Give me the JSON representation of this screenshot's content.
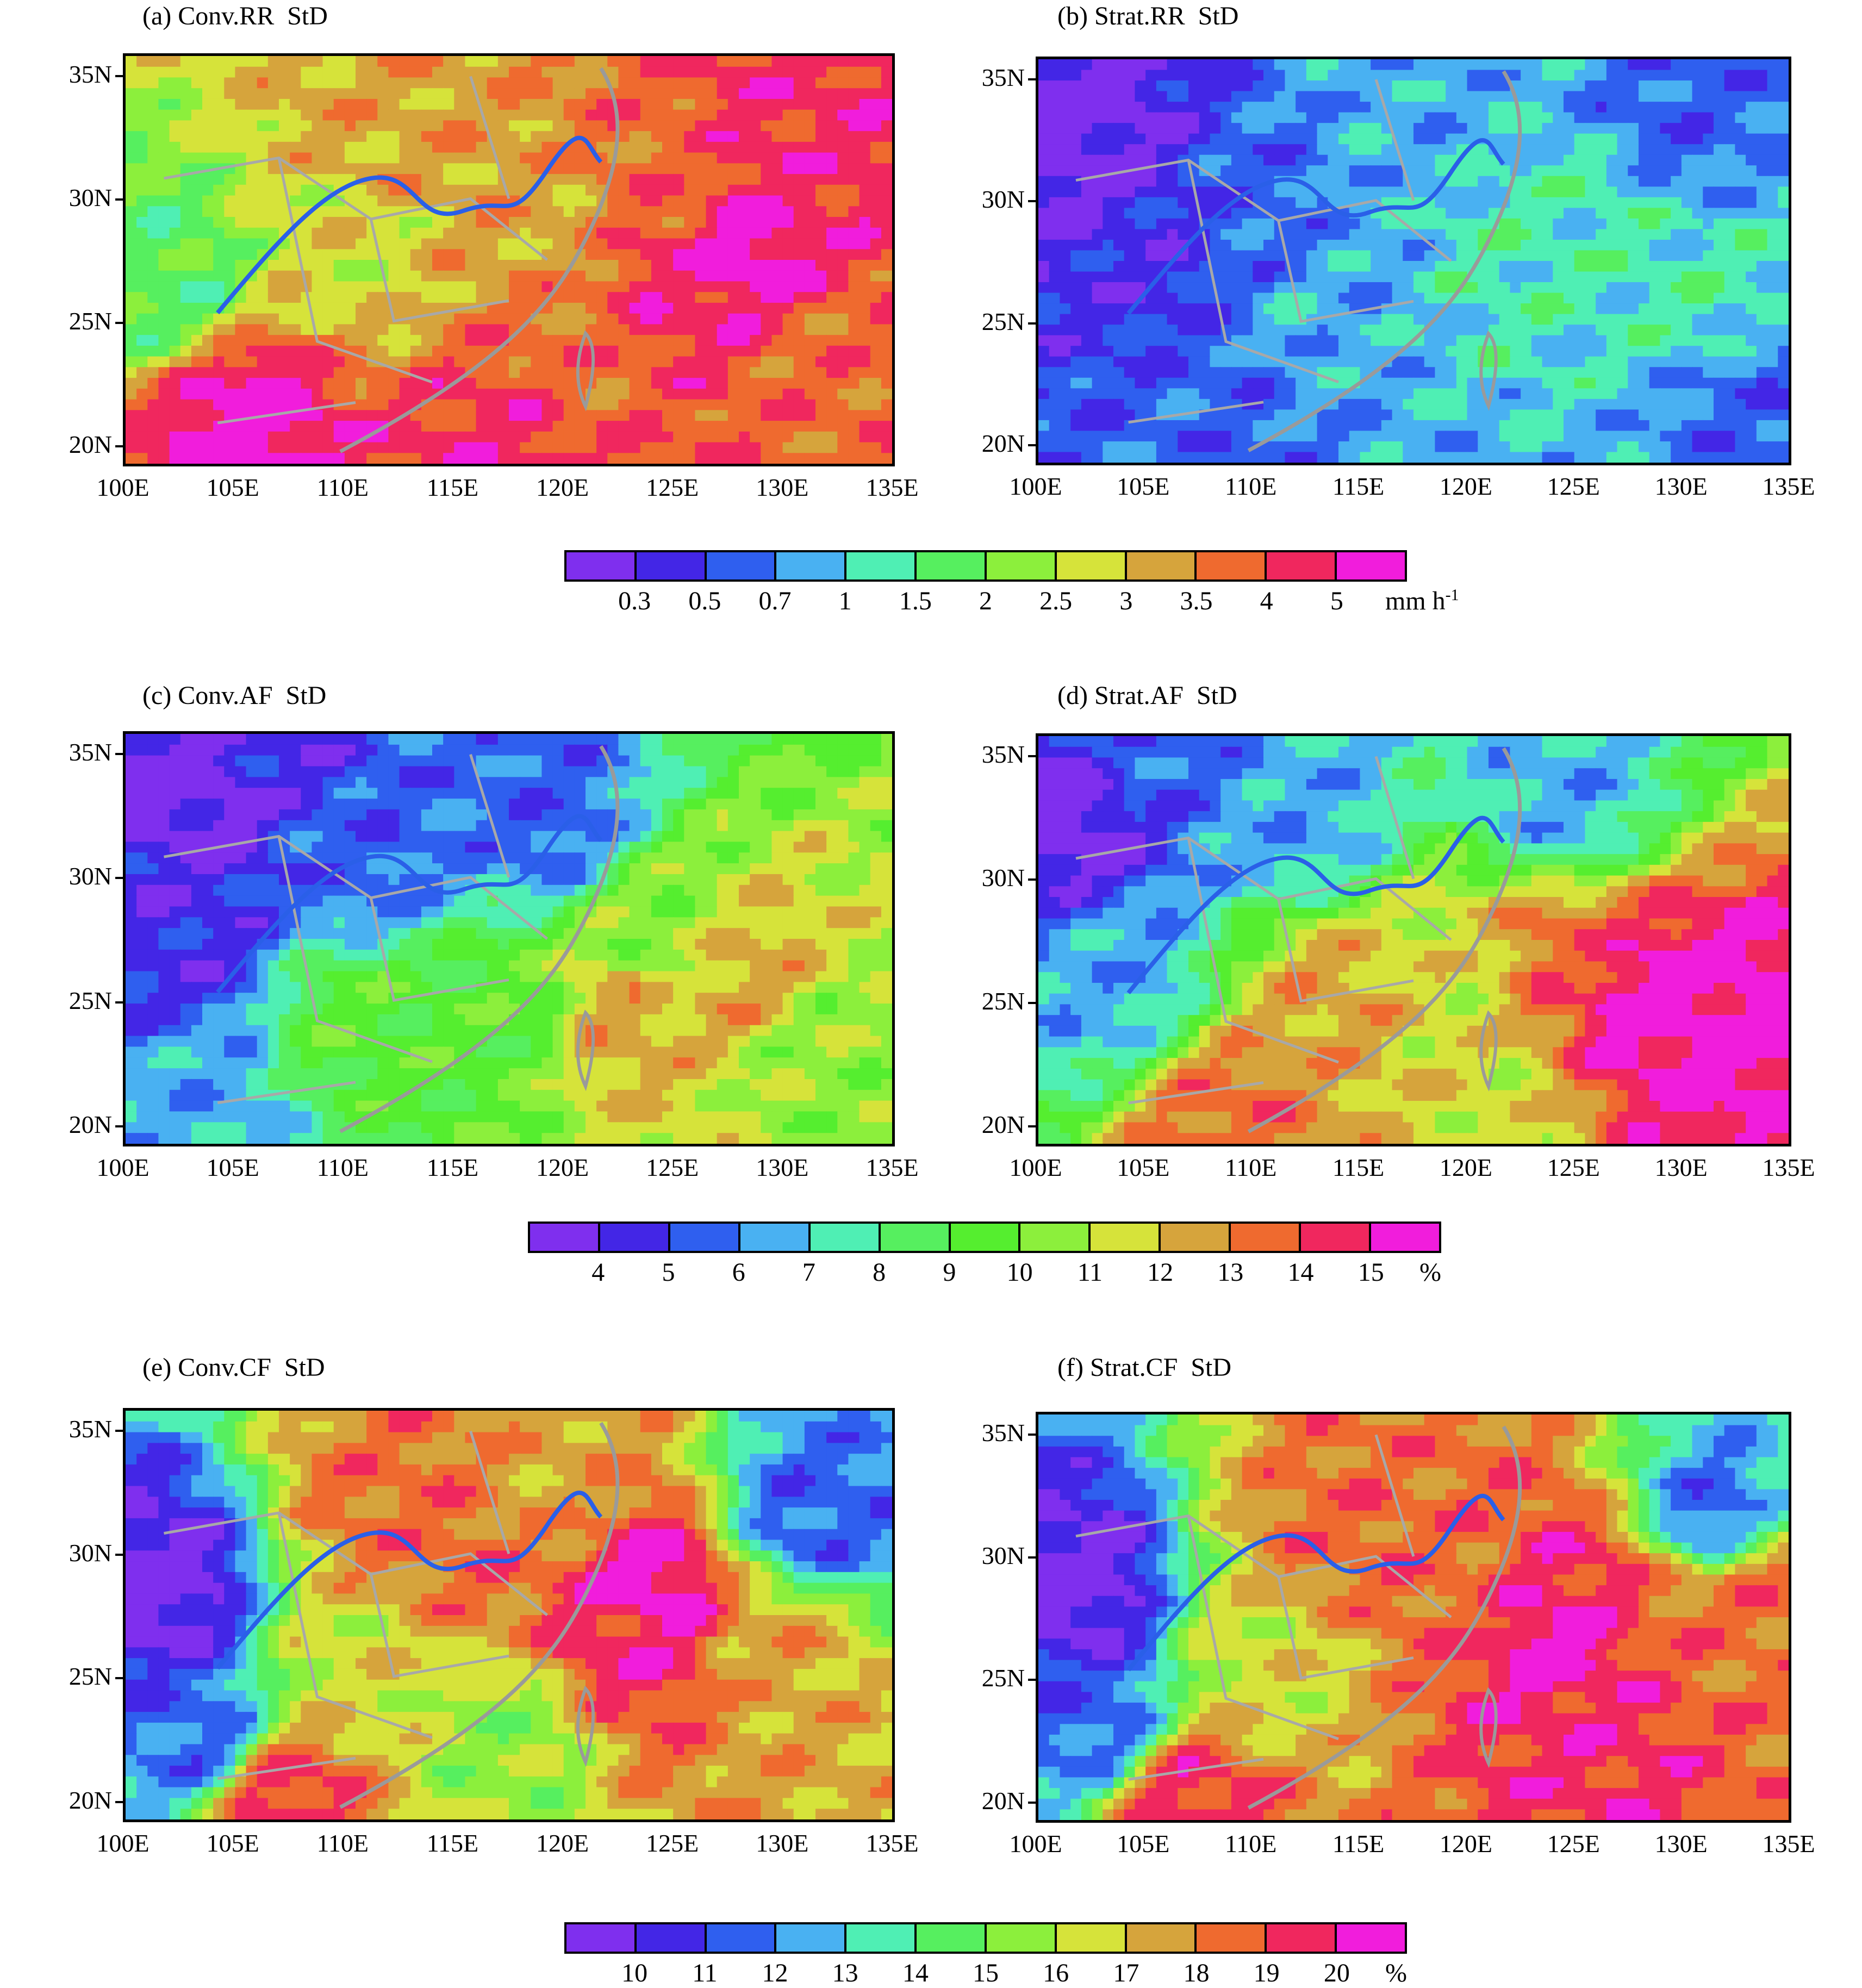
{
  "palette": {
    "rr": [
      "#7f2fee",
      "#4326e6",
      "#2f5fef",
      "#49b1f2",
      "#4fefb4",
      "#56ef5f",
      "#8cef3c",
      "#d6e33a",
      "#d6a43c",
      "#ef6a2f",
      "#f0275e",
      "#f11ddc"
    ],
    "af": [
      "#7f2fee",
      "#4326e6",
      "#2f5fef",
      "#49b1f2",
      "#4fefb4",
      "#56ef5f",
      "#55ee2f",
      "#8cef3c",
      "#d6e33a",
      "#d6a43c",
      "#ef6a2f",
      "#f0275e",
      "#f11ddc"
    ],
    "cf": [
      "#7f2fee",
      "#4326e6",
      "#2f5fef",
      "#49b1f2",
      "#4fefb4",
      "#56ef5f",
      "#8cef3c",
      "#d6e33a",
      "#d6a43c",
      "#ef6a2f",
      "#f0275e",
      "#f11ddc"
    ]
  },
  "axes": {
    "y_ticks": [
      "35N",
      "30N",
      "25N",
      "20N"
    ],
    "x_ticks": [
      "100E",
      "105E",
      "110E",
      "115E",
      "120E",
      "125E",
      "130E",
      "135E"
    ]
  },
  "panels": [
    {
      "id": "a",
      "title": "(a) Conv.RR  StD",
      "scale": "rr"
    },
    {
      "id": "b",
      "title": "(b) Strat.RR  StD",
      "scale": "rr"
    },
    {
      "id": "c",
      "title": "(c) Conv.AF  StD",
      "scale": "af"
    },
    {
      "id": "d",
      "title": "(d) Strat.AF  StD",
      "scale": "af"
    },
    {
      "id": "e",
      "title": "(e) Conv.CF  StD",
      "scale": "cf"
    },
    {
      "id": "f",
      "title": "(f) Strat.CF  StD",
      "scale": "cf"
    }
  ],
  "colorbars": {
    "rr": {
      "labels": [
        "0.3",
        "0.5",
        "0.7",
        "1",
        "1.5",
        "2",
        "2.5",
        "3",
        "3.5",
        "4",
        "5"
      ],
      "unit": "mm h",
      "unit_sup": "-1"
    },
    "af": {
      "labels": [
        "4",
        "5",
        "6",
        "7",
        "8",
        "9",
        "10",
        "11",
        "12",
        "13",
        "14",
        "15"
      ],
      "unit": "%",
      "unit_sup": ""
    },
    "cf": {
      "labels": [
        "10",
        "11",
        "12",
        "13",
        "14",
        "15",
        "16",
        "17",
        "18",
        "19",
        "20"
      ],
      "unit": "%",
      "unit_sup": ""
    }
  },
  "map_fields": {
    "a": {
      "base": 6,
      "blobs": [
        [
          0.7,
          0.3,
          9
        ],
        [
          0.85,
          0.2,
          10
        ],
        [
          0.72,
          0.55,
          10
        ],
        [
          0.55,
          0.4,
          8
        ],
        [
          0.3,
          0.45,
          7
        ],
        [
          0.05,
          0.55,
          5
        ],
        [
          0.8,
          0.5,
          11
        ],
        [
          0.5,
          0.95,
          10
        ],
        [
          0.15,
          0.9,
          11
        ],
        [
          0.35,
          0.2,
          8
        ],
        [
          0.9,
          0.75,
          9
        ],
        [
          0.6,
          0.75,
          9
        ]
      ]
    },
    "b": {
      "base": 4,
      "blobs": [
        [
          0.05,
          0.2,
          0
        ],
        [
          0.15,
          0.5,
          1
        ],
        [
          0.3,
          0.4,
          2
        ],
        [
          0.45,
          0.5,
          3
        ],
        [
          0.35,
          0.65,
          3
        ],
        [
          0.6,
          0.5,
          4
        ],
        [
          0.75,
          0.4,
          4
        ],
        [
          0.9,
          0.6,
          4
        ],
        [
          0.5,
          0.15,
          3
        ],
        [
          0.25,
          0.85,
          2
        ],
        [
          0.85,
          0.15,
          2
        ],
        [
          0.95,
          0.85,
          2
        ]
      ]
    },
    "c": {
      "base": 4,
      "blobs": [
        [
          0.1,
          0.15,
          0
        ],
        [
          0.2,
          0.05,
          1
        ],
        [
          0.08,
          0.5,
          1
        ],
        [
          0.3,
          0.3,
          2
        ],
        [
          0.55,
          0.2,
          2
        ],
        [
          0.7,
          0.5,
          7
        ],
        [
          0.8,
          0.6,
          9
        ],
        [
          0.65,
          0.7,
          9
        ],
        [
          0.5,
          0.7,
          6
        ],
        [
          0.3,
          0.7,
          6
        ],
        [
          0.9,
          0.8,
          7
        ],
        [
          0.1,
          0.9,
          3
        ]
      ]
    },
    "d": {
      "base": 5,
      "blobs": [
        [
          0.05,
          0.2,
          0
        ],
        [
          0.15,
          0.05,
          2
        ],
        [
          0.35,
          0.2,
          3
        ],
        [
          0.7,
          0.15,
          3
        ],
        [
          0.8,
          0.65,
          12
        ],
        [
          0.92,
          0.7,
          12
        ],
        [
          0.7,
          0.55,
          10
        ],
        [
          0.4,
          0.65,
          9
        ],
        [
          0.25,
          0.95,
          10
        ],
        [
          0.55,
          0.6,
          8
        ],
        [
          0.1,
          0.6,
          3
        ],
        [
          0.6,
          0.9,
          8
        ]
      ]
    },
    "e": {
      "base": 6,
      "blobs": [
        [
          0.05,
          0.45,
          0
        ],
        [
          0.1,
          0.8,
          2
        ],
        [
          0.65,
          0.55,
          10
        ],
        [
          0.68,
          0.45,
          11
        ],
        [
          0.35,
          0.25,
          9
        ],
        [
          0.45,
          0.35,
          9
        ],
        [
          0.55,
          0.2,
          8
        ],
        [
          0.2,
          0.95,
          10
        ],
        [
          0.3,
          0.6,
          7
        ],
        [
          0.9,
          0.25,
          2
        ],
        [
          0.85,
          0.6,
          8
        ],
        [
          0.5,
          0.8,
          6
        ]
      ]
    },
    "f": {
      "base": 6,
      "blobs": [
        [
          0.05,
          0.45,
          0
        ],
        [
          0.08,
          0.75,
          2
        ],
        [
          0.7,
          0.55,
          11
        ],
        [
          0.73,
          0.45,
          10
        ],
        [
          0.85,
          0.5,
          9
        ],
        [
          0.4,
          0.3,
          9
        ],
        [
          0.55,
          0.4,
          9
        ],
        [
          0.9,
          0.25,
          2
        ],
        [
          0.2,
          0.95,
          10
        ],
        [
          0.3,
          0.6,
          7
        ],
        [
          0.75,
          0.8,
          10
        ],
        [
          0.95,
          0.45,
          9
        ]
      ]
    }
  }
}
